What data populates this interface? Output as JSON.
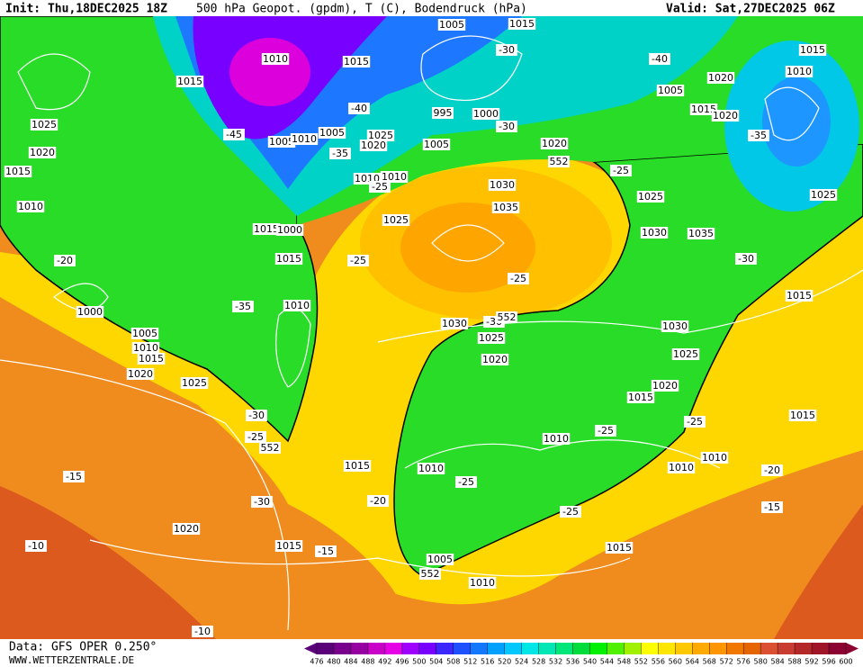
{
  "header": {
    "init": "Init: Thu,18DEC2025 18Z",
    "title": "500 hPa Geopot. (gpdm), T (C), Bodendruck (hPa)",
    "valid": "Valid: Sat,27DEC2025 06Z"
  },
  "map_labels": [
    "1005",
    "1015",
    "-30",
    "1010",
    "1015",
    "-40",
    "1015",
    "1010",
    "1020",
    "1015",
    "1005",
    "1015",
    "1020",
    "995",
    "1000",
    "-40",
    "1025",
    "-45",
    "1005",
    "1025",
    "-30",
    "-35",
    "1005",
    "1010",
    "1020",
    "1005",
    "1020",
    "1020",
    "-35",
    "552",
    "1015",
    "-25",
    "1010",
    "1010",
    "1030",
    "-25",
    "1025",
    "1025",
    "1010",
    "1035",
    "1025",
    "1015",
    "1000",
    "1030",
    "1035",
    "-20",
    "1015",
    "-25",
    "-30",
    "-25",
    "1015",
    "1010",
    "-35",
    "1000",
    "1030",
    "-30",
    "552",
    "1030",
    "1005",
    "1025",
    "1010",
    "1015",
    "1025",
    "1020",
    "1020",
    "1025",
    "1020",
    "1015",
    "-30",
    "1015",
    "-25",
    "-25",
    "-25",
    "552",
    "1010",
    "1010",
    "1015",
    "1010",
    "1010",
    "-20",
    "-15",
    "-25",
    "-20",
    "-30",
    "-15",
    "-25",
    "1020",
    "-10",
    "1015",
    "-15",
    "1015",
    "1005",
    "552",
    "1010",
    "-10"
  ],
  "colorbar": {
    "labels": [
      476,
      480,
      484,
      488,
      492,
      496,
      500,
      504,
      508,
      512,
      516,
      520,
      524,
      528,
      532,
      536,
      540,
      544,
      548,
      552,
      556,
      560,
      564,
      568,
      572,
      576,
      580,
      584,
      588,
      592,
      596,
      600
    ],
    "colors": [
      "#5a0078",
      "#78008c",
      "#9600a0",
      "#c800c8",
      "#e600e6",
      "#a000ff",
      "#7800ff",
      "#3c28ff",
      "#1e50ff",
      "#1478ff",
      "#00a0ff",
      "#00c8ff",
      "#00e6e6",
      "#00e6b4",
      "#00e678",
      "#00dc3c",
      "#00f000",
      "#50f000",
      "#a0f000",
      "#ffff00",
      "#ffe600",
      "#ffc800",
      "#ffaa00",
      "#ff9600",
      "#f07800",
      "#e66400",
      "#dc5032",
      "#c83c32",
      "#b42828",
      "#a01428",
      "#8c0032"
    ]
  },
  "footer": {
    "data": "Data: GFS OPER 0.250°",
    "site": "WWW.WETTERZENTRALE.DE"
  }
}
